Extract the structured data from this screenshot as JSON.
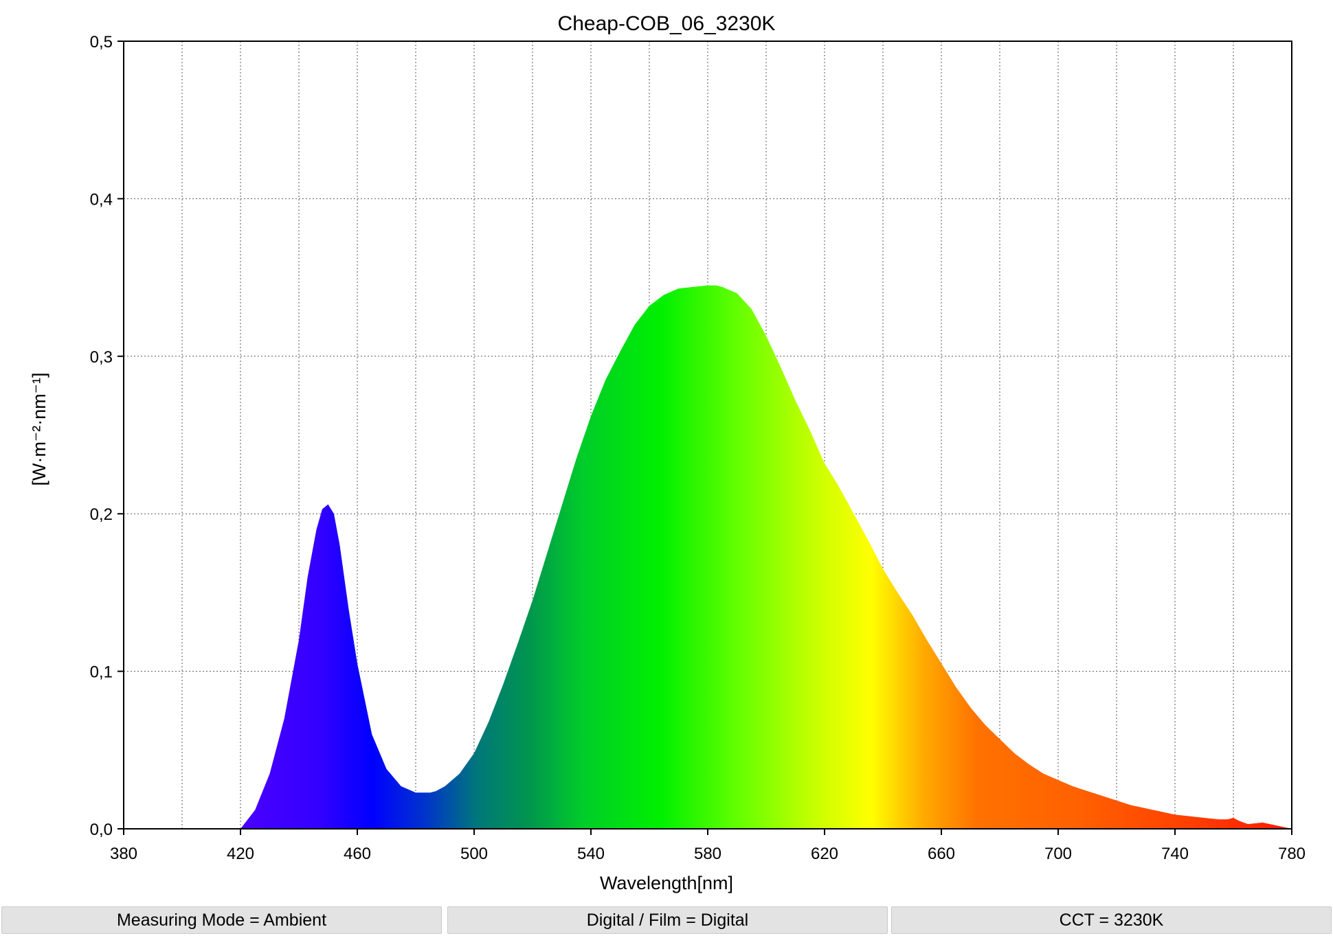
{
  "chart_data": {
    "type": "area",
    "title": "Cheap-COB_06_3230K",
    "xlabel": "Wavelength[nm]",
    "ylabel": "[W·m⁻²·nm⁻¹]",
    "xlim": [
      380,
      780
    ],
    "ylim": [
      0,
      0.5
    ],
    "x_ticks": [
      380,
      420,
      460,
      500,
      540,
      580,
      620,
      660,
      700,
      740,
      780
    ],
    "x_tick_labels": [
      "380",
      "420",
      "460",
      "500",
      "540",
      "580",
      "620",
      "660",
      "700",
      "740",
      "780"
    ],
    "y_ticks": [
      0,
      0.1,
      0.2,
      0.3,
      0.4,
      0.5
    ],
    "y_tick_labels": [
      "0,0",
      "0,1",
      "0,2",
      "0,3",
      "0,4",
      "0,5"
    ],
    "x_grid": [
      400,
      420,
      440,
      460,
      480,
      500,
      520,
      540,
      560,
      580,
      600,
      620,
      640,
      660,
      680,
      700,
      720,
      740,
      760
    ],
    "grid": true,
    "fill": "visible-spectrum gradient",
    "x": [
      420,
      425,
      430,
      435,
      440,
      443,
      446,
      448,
      450,
      452,
      454,
      457,
      460,
      465,
      470,
      475,
      480,
      485,
      487,
      490,
      495,
      500,
      505,
      510,
      515,
      520,
      525,
      530,
      535,
      540,
      545,
      550,
      555,
      560,
      565,
      570,
      575,
      580,
      583,
      585,
      590,
      595,
      600,
      605,
      610,
      615,
      620,
      625,
      630,
      635,
      640,
      645,
      650,
      655,
      660,
      665,
      670,
      675,
      680,
      685,
      690,
      695,
      700,
      705,
      710,
      715,
      720,
      725,
      730,
      735,
      740,
      745,
      750,
      755,
      758,
      760,
      762,
      765,
      770,
      775,
      780
    ],
    "y": [
      0.0,
      0.012,
      0.035,
      0.07,
      0.12,
      0.16,
      0.19,
      0.203,
      0.206,
      0.2,
      0.18,
      0.14,
      0.105,
      0.06,
      0.038,
      0.027,
      0.023,
      0.023,
      0.024,
      0.027,
      0.035,
      0.048,
      0.068,
      0.092,
      0.118,
      0.145,
      0.175,
      0.205,
      0.235,
      0.262,
      0.285,
      0.303,
      0.32,
      0.332,
      0.339,
      0.343,
      0.344,
      0.345,
      0.345,
      0.344,
      0.34,
      0.33,
      0.313,
      0.293,
      0.272,
      0.253,
      0.232,
      0.217,
      0.2,
      0.183,
      0.165,
      0.15,
      0.136,
      0.12,
      0.105,
      0.09,
      0.077,
      0.066,
      0.057,
      0.048,
      0.041,
      0.035,
      0.031,
      0.027,
      0.024,
      0.021,
      0.018,
      0.015,
      0.013,
      0.011,
      0.009,
      0.008,
      0.007,
      0.006,
      0.006,
      0.007,
      0.005,
      0.003,
      0.004,
      0.002,
      0.0
    ]
  },
  "status_bar": {
    "measuring_mode": "Measuring Mode = Ambient",
    "digital_film": "Digital / Film = Digital",
    "cct": "CCT = 3230K"
  }
}
